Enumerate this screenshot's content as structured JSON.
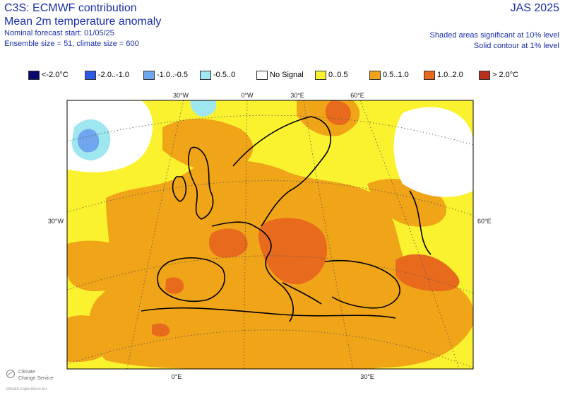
{
  "header": {
    "title": "C3S: ECMWF contribution",
    "subtitle": "Mean 2m temperature anomaly",
    "start": "Nominal forecast start: 01/05/25",
    "ensemble": "Ensemble size = 51, climate size = 600",
    "season": "JAS 2025",
    "shading_note": "Shaded areas significant at 10% level",
    "contour_note": "Solid contour at 1% level"
  },
  "legend": [
    {
      "label": "<-2.0°C",
      "color": "#08086e"
    },
    {
      "label": "-2.0..-1.0",
      "color": "#2d59e6"
    },
    {
      "label": "-1.0..-0.5",
      "color": "#6fa6ee"
    },
    {
      "label": "-0.5..0",
      "color": "#9ee6f0"
    },
    {
      "label": "No Signal",
      "color": "#ffffff"
    },
    {
      "label": "0..0.5",
      "color": "#fbf22f"
    },
    {
      "label": "0.5..1.0",
      "color": "#f0a418"
    },
    {
      "label": "1.0..2.0",
      "color": "#e76a1d"
    },
    {
      "label": "> 2.0°C",
      "color": "#b8301c"
    }
  ],
  "axes": {
    "top": [
      "30°W",
      "0°W",
      "30°E",
      "60°E"
    ],
    "left": "30°W",
    "right": "60°E",
    "bottom": [
      "0°E",
      "30°E"
    ]
  },
  "footer": {
    "logo_line1": "Climate",
    "logo_line2": "Change Service",
    "url": "climate.copernicus.eu"
  }
}
